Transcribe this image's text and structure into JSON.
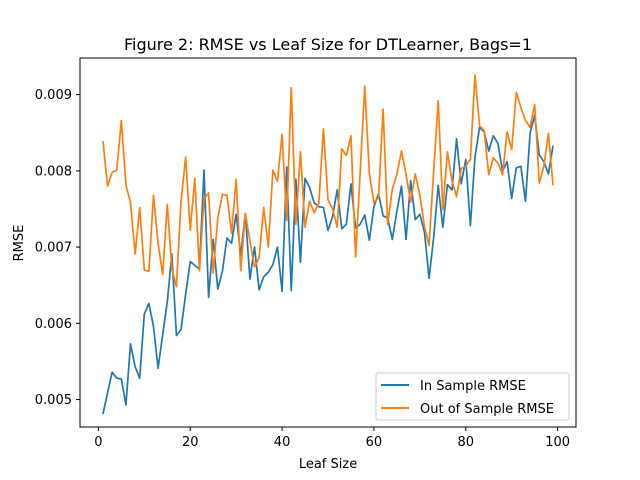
{
  "chart_data": {
    "type": "line",
    "title": "Figure 2: RMSE vs Leaf Size for DTLearner, Bags=1",
    "xlabel": "Leaf Size",
    "ylabel": "RMSE",
    "xlim": [
      -4.0,
      104.0
    ],
    "ylim": [
      0.00464,
      0.00948
    ],
    "xticks": [
      0,
      20,
      40,
      60,
      80,
      100
    ],
    "xtick_labels": [
      "0",
      "20",
      "40",
      "60",
      "80",
      "100"
    ],
    "yticks": [
      0.005,
      0.006,
      0.007,
      0.008,
      0.009
    ],
    "ytick_labels": [
      "0.005",
      "0.006",
      "0.007",
      "0.008",
      "0.009"
    ],
    "grid": false,
    "legend_position": "lower-right",
    "x": [
      1,
      2,
      3,
      4,
      5,
      6,
      7,
      8,
      9,
      10,
      11,
      12,
      13,
      14,
      15,
      16,
      17,
      18,
      19,
      20,
      21,
      22,
      23,
      24,
      25,
      26,
      27,
      28,
      29,
      30,
      31,
      32,
      33,
      34,
      35,
      36,
      37,
      38,
      39,
      40,
      41,
      42,
      43,
      44,
      45,
      46,
      47,
      48,
      49,
      50,
      51,
      52,
      53,
      54,
      55,
      56,
      57,
      58,
      59,
      60,
      61,
      62,
      63,
      64,
      65,
      66,
      67,
      68,
      69,
      70,
      71,
      72,
      73,
      74,
      75,
      76,
      77,
      78,
      79,
      80,
      81,
      82,
      83,
      84,
      85,
      86,
      87,
      88,
      89,
      90,
      91,
      92,
      93,
      94,
      95,
      96,
      97,
      98,
      99
    ],
    "series": [
      {
        "name": "In Sample RMSE",
        "color": "#1f77b4",
        "values": [
          0.00481,
          0.00509,
          0.00536,
          0.00528,
          0.00527,
          0.00493,
          0.00573,
          0.00543,
          0.00528,
          0.00612,
          0.00626,
          0.00596,
          0.00541,
          0.00585,
          0.00628,
          0.00691,
          0.00584,
          0.00592,
          0.00638,
          0.00681,
          0.00676,
          0.00671,
          0.00801,
          0.00634,
          0.0071,
          0.00645,
          0.00668,
          0.00712,
          0.00705,
          0.00743,
          0.00689,
          0.00744,
          0.00658,
          0.007,
          0.00644,
          0.00661,
          0.00667,
          0.00677,
          0.007,
          0.00642,
          0.00805,
          0.00643,
          0.00789,
          0.0068,
          0.0079,
          0.00778,
          0.00758,
          0.00753,
          0.00752,
          0.00722,
          0.0074,
          0.00775,
          0.00724,
          0.0073,
          0.00783,
          0.00725,
          0.0073,
          0.00742,
          0.00709,
          0.00753,
          0.0077,
          0.00741,
          0.00738,
          0.0071,
          0.00747,
          0.0078,
          0.0071,
          0.00787,
          0.00736,
          0.00743,
          0.0072,
          0.00659,
          0.00712,
          0.00781,
          0.00726,
          0.00782,
          0.00775,
          0.00842,
          0.00783,
          0.00815,
          0.00728,
          0.00818,
          0.00857,
          0.00851,
          0.00826,
          0.00846,
          0.00836,
          0.008,
          0.00812,
          0.00764,
          0.00804,
          0.00806,
          0.0076,
          0.00849,
          0.00873,
          0.00821,
          0.00812,
          0.00796,
          0.00833
        ]
      },
      {
        "name": "Out of Sample RMSE",
        "color": "#ff7f0e",
        "values": [
          0.00839,
          0.0078,
          0.00798,
          0.00801,
          0.00866,
          0.00781,
          0.00758,
          0.00691,
          0.00752,
          0.0067,
          0.00668,
          0.00768,
          0.00705,
          0.00664,
          0.00756,
          0.00671,
          0.00648,
          0.0076,
          0.00818,
          0.00722,
          0.0079,
          0.00669,
          0.00763,
          0.00771,
          0.00666,
          0.00738,
          0.00769,
          0.00768,
          0.00718,
          0.00789,
          0.00669,
          0.00744,
          0.00708,
          0.00674,
          0.00686,
          0.00752,
          0.007,
          0.00801,
          0.00786,
          0.00848,
          0.00735,
          0.00909,
          0.0073,
          0.00825,
          0.00726,
          0.0076,
          0.00745,
          0.00757,
          0.00855,
          0.00762,
          0.0075,
          0.00726,
          0.00829,
          0.0082,
          0.00846,
          0.00687,
          0.00797,
          0.00911,
          0.00797,
          0.00758,
          0.00765,
          0.00881,
          0.0073,
          0.00776,
          0.00795,
          0.00826,
          0.00795,
          0.00759,
          0.00796,
          0.00768,
          0.00727,
          0.00702,
          0.00799,
          0.00892,
          0.00749,
          0.00825,
          0.00787,
          0.00766,
          0.00803,
          0.00806,
          0.00815,
          0.00926,
          0.00859,
          0.00853,
          0.00795,
          0.00817,
          0.0081,
          0.00795,
          0.00851,
          0.00828,
          0.00903,
          0.00883,
          0.00866,
          0.00857,
          0.00887,
          0.00784,
          0.00806,
          0.00849,
          0.00781
        ]
      }
    ]
  }
}
